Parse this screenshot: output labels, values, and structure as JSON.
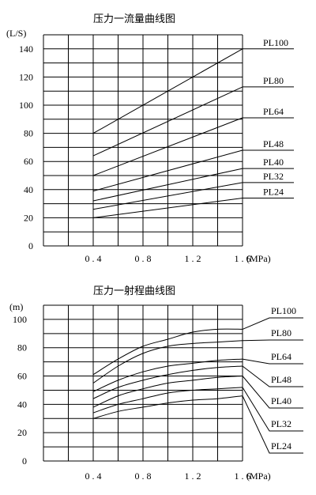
{
  "chart_data": [
    {
      "type": "line",
      "title": "压力一流量曲线图",
      "xlabel": "(MPa)",
      "ylabel": "(L/S)",
      "x_ticks": [
        "0.4",
        "0.8",
        "1.2",
        "1.6"
      ],
      "y_ticks": [
        "0",
        "20",
        "40",
        "60",
        "80",
        "100",
        "120",
        "140"
      ],
      "xlim": [
        0,
        1.6
      ],
      "ylim": [
        0,
        150
      ],
      "grid": true,
      "series": [
        {
          "name": "PL100",
          "points": [
            [
              0.4,
              80
            ],
            [
              1.6,
              140
            ]
          ]
        },
        {
          "name": "PL80",
          "points": [
            [
              0.4,
              64
            ],
            [
              1.6,
              113
            ]
          ]
        },
        {
          "name": "PL64",
          "points": [
            [
              0.4,
              50
            ],
            [
              1.6,
              91
            ]
          ]
        },
        {
          "name": "PL48",
          "points": [
            [
              0.4,
              39
            ],
            [
              1.6,
              68
            ]
          ]
        },
        {
          "name": "PL40",
          "points": [
            [
              0.4,
              32
            ],
            [
              1.6,
              55
            ]
          ]
        },
        {
          "name": "PL32",
          "points": [
            [
              0.4,
              26
            ],
            [
              1.6,
              45
            ]
          ]
        },
        {
          "name": "PL24",
          "points": [
            [
              0.4,
              20
            ],
            [
              1.6,
              34
            ]
          ]
        }
      ]
    },
    {
      "type": "line",
      "title": "压力一射程曲线图",
      "xlabel": "(MPa)",
      "ylabel": "(m)",
      "x_ticks": [
        "0.4",
        "0.8",
        "1.2",
        "1.6"
      ],
      "y_ticks": [
        "0",
        "20",
        "40",
        "60",
        "80",
        "100"
      ],
      "xlim": [
        0,
        1.6
      ],
      "ylim": [
        0,
        110
      ],
      "grid": true,
      "series": [
        {
          "name": "PL100",
          "points": [
            [
              0.4,
              61
            ],
            [
              0.6,
              72
            ],
            [
              0.8,
              81
            ],
            [
              1.0,
              86
            ],
            [
              1.2,
              91
            ],
            [
              1.4,
              93
            ],
            [
              1.6,
              93
            ]
          ]
        },
        {
          "name": "PL80",
          "points": [
            [
              0.4,
              55
            ],
            [
              0.6,
              67
            ],
            [
              0.8,
              76
            ],
            [
              1.0,
              81
            ],
            [
              1.2,
              83
            ],
            [
              1.4,
              84
            ],
            [
              1.6,
              85
            ]
          ]
        },
        {
          "name": "PL64",
          "points": [
            [
              0.4,
              49
            ],
            [
              0.6,
              57
            ],
            [
              0.8,
              63
            ],
            [
              1.0,
              67
            ],
            [
              1.2,
              69
            ],
            [
              1.4,
              71
            ],
            [
              1.6,
              72
            ]
          ]
        },
        {
          "name": "PL48",
          "points": [
            [
              0.4,
              44
            ],
            [
              0.6,
              52
            ],
            [
              0.8,
              57
            ],
            [
              1.0,
              61
            ],
            [
              1.2,
              64
            ],
            [
              1.4,
              66
            ],
            [
              1.6,
              67
            ]
          ]
        },
        {
          "name": "PL40",
          "points": [
            [
              0.4,
              38
            ],
            [
              0.6,
              46
            ],
            [
              0.8,
              51
            ],
            [
              1.0,
              55
            ],
            [
              1.2,
              57
            ],
            [
              1.4,
              59
            ],
            [
              1.6,
              60
            ]
          ]
        },
        {
          "name": "PL32",
          "points": [
            [
              0.4,
              34
            ],
            [
              0.6,
              40
            ],
            [
              0.8,
              44
            ],
            [
              1.0,
              48
            ],
            [
              1.2,
              50
            ],
            [
              1.4,
              51
            ],
            [
              1.6,
              52
            ]
          ]
        },
        {
          "name": "PL24",
          "points": [
            [
              0.4,
              30
            ],
            [
              0.6,
              35
            ],
            [
              0.8,
              38
            ],
            [
              1.0,
              41
            ],
            [
              1.2,
              43
            ],
            [
              1.4,
              44
            ],
            [
              1.6,
              46
            ]
          ]
        }
      ]
    }
  ]
}
